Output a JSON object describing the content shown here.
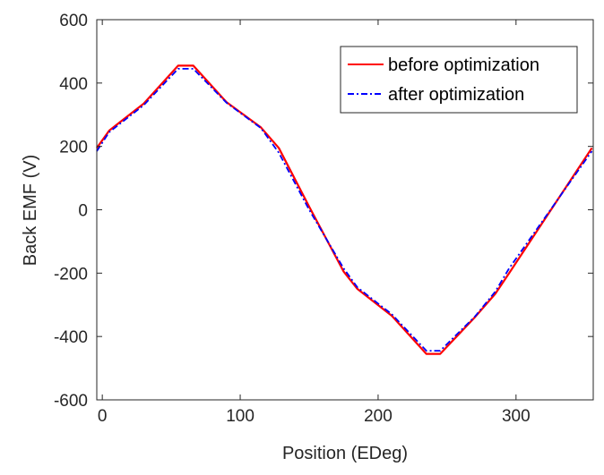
{
  "chart_data": {
    "type": "line",
    "xlabel": "Position (EDeg)",
    "ylabel": "Back EMF (V)",
    "xlim": [
      -4,
      356
    ],
    "ylim": [
      -600,
      600
    ],
    "xticks": [
      0,
      100,
      200,
      300
    ],
    "yticks": [
      600,
      400,
      200,
      0,
      -200,
      -400,
      -600
    ],
    "grid": false,
    "legend_position": "top-right",
    "series": [
      {
        "name": "before optimization",
        "color": "#ff0000",
        "dash": "solid",
        "x": [
          -4,
          5,
          30,
          55,
          66,
          90,
          115,
          128,
          150,
          175,
          185,
          210,
          235,
          245,
          270,
          285,
          295,
          355
        ],
        "y": [
          195,
          250,
          335,
          455,
          455,
          340,
          260,
          195,
          10,
          -195,
          -250,
          -335,
          -455,
          -455,
          -340,
          -265,
          -200,
          195
        ]
      },
      {
        "name": "after optimization",
        "color": "#0000ff",
        "dash": "dashdot",
        "x": [
          -4,
          5,
          30,
          55,
          66,
          90,
          115,
          128,
          150,
          175,
          185,
          210,
          235,
          245,
          270,
          285,
          295,
          355
        ],
        "y": [
          185,
          245,
          330,
          445,
          445,
          338,
          258,
          180,
          0,
          -185,
          -245,
          -330,
          -445,
          -445,
          -338,
          -258,
          -185,
          185
        ]
      }
    ]
  }
}
